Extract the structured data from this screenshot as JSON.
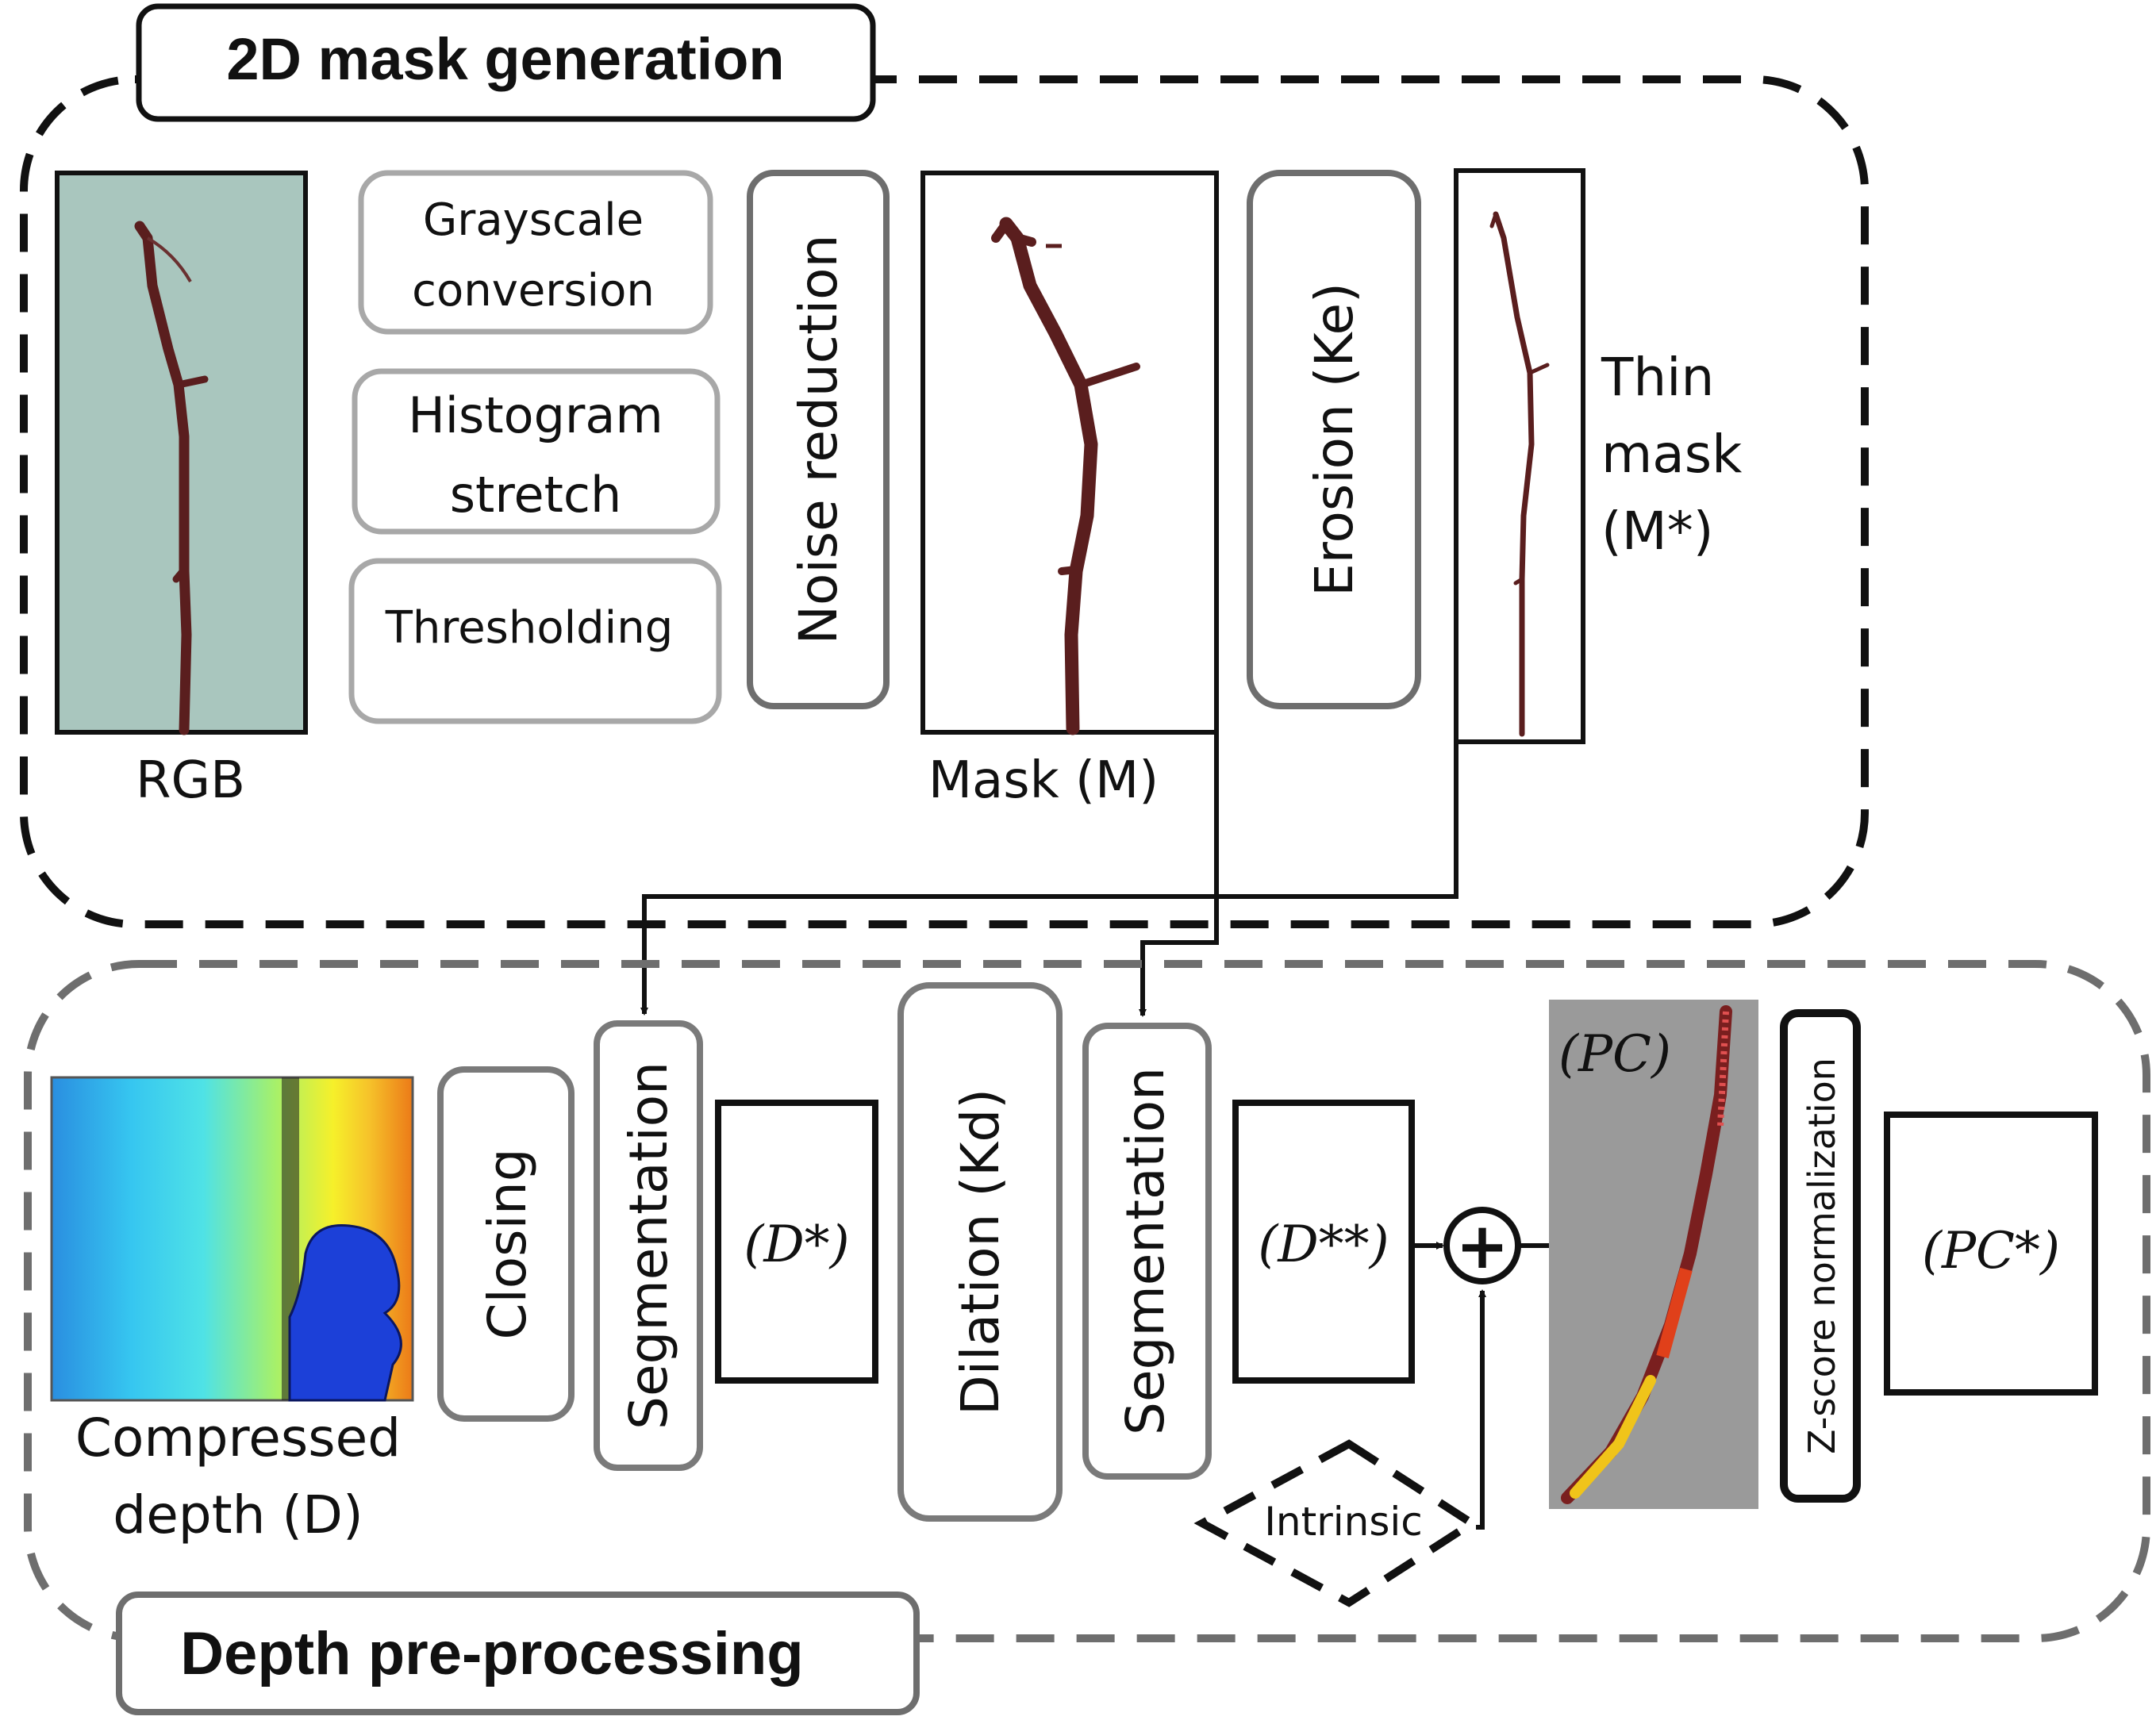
{
  "section_top": {
    "title": "2D mask generation"
  },
  "section_bottom": {
    "title": "Depth pre-processing"
  },
  "images": {
    "rgb_label": "RGB",
    "mask_label": "Mask (M)",
    "thin_label_1": "Thin",
    "thin_label_2": "mask",
    "thin_label_3": "(M*)",
    "depth_label_1": "Compressed",
    "depth_label_2": "depth (D)",
    "pc_label": "(PC)"
  },
  "steps": {
    "grayscale_1": "Grayscale",
    "grayscale_2": "conversion",
    "histogram_1": "Histogram",
    "histogram_2": "stretch",
    "thresholding": "Thresholding",
    "noise": "Noise reduction",
    "erosion": "Erosion (Ke)",
    "closing": "Closing",
    "segmentation_1": "Segmentation",
    "dilation": "Dilation (Kd)",
    "segmentation_2": "Segmentation",
    "intrinsic": "Intrinsic",
    "zscore": "Z-score normalization"
  },
  "outputs": {
    "d_star": "(D*)",
    "d_star_star": "(D**)",
    "pc_star": "(PC*)",
    "plus": "+"
  },
  "colors": {
    "top_frame": "#111111",
    "bottom_frame": "#6e6e6e",
    "box_gray": "#7a7a7a",
    "light_box": "#a8a8a8",
    "twig": "#5a1e1e",
    "rgb_background": "#a9c6be",
    "pc_background": "#9a9a9a",
    "depth_blue": "#1c40d8"
  }
}
